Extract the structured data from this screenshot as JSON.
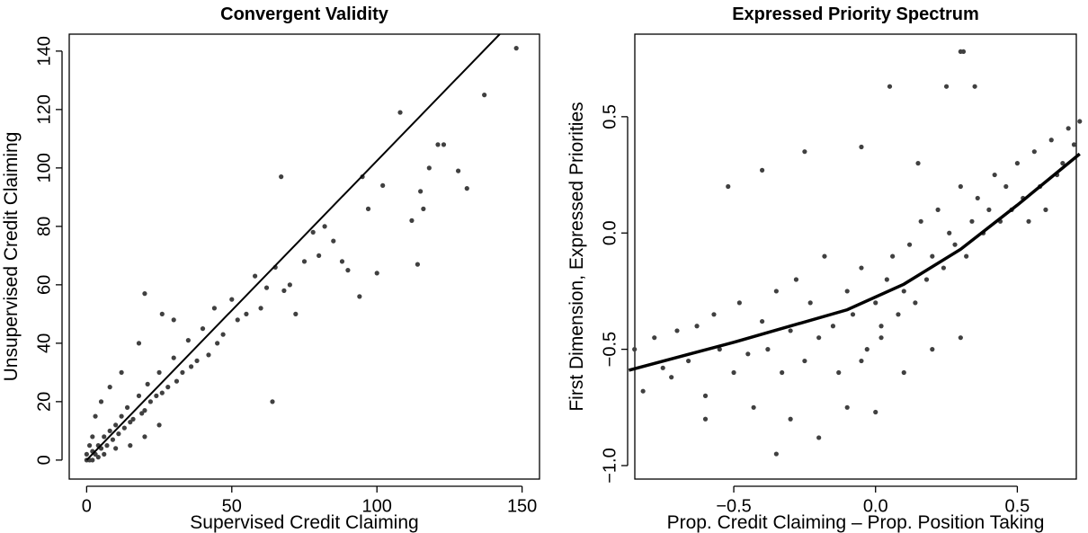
{
  "chart_data": [
    {
      "type": "scatter",
      "title": "Convergent Validity",
      "x_label": "Supervised Credit Claiming",
      "y_label": "Unsupervised Credit Claiming",
      "xlim": [
        -6,
        156
      ],
      "ylim": [
        -6.5,
        145.8
      ],
      "xticks": [
        0,
        50,
        100,
        150
      ],
      "yticks": [
        0,
        20,
        40,
        60,
        80,
        100,
        120,
        140
      ],
      "series": [
        {
          "kind": "points",
          "color": "#404040",
          "x": [
            1,
            2,
            3,
            4,
            5,
            6,
            7,
            8,
            9,
            10,
            11,
            12,
            13,
            14,
            15,
            16,
            18,
            19,
            20,
            21,
            22,
            24,
            25,
            26,
            28,
            30,
            31,
            33,
            35,
            36,
            38,
            40,
            42,
            44,
            45,
            47,
            50,
            52,
            55,
            58,
            60,
            62,
            64,
            65,
            67,
            68,
            70,
            72,
            75,
            78,
            80,
            82,
            85,
            88,
            90,
            94,
            95,
            97,
            100,
            102,
            108,
            112,
            114,
            115,
            116,
            118,
            121,
            123,
            128,
            131,
            137,
            148,
            3,
            5,
            8,
            12,
            18,
            20,
            26,
            30,
            15,
            20,
            25,
            2,
            4,
            6,
            10,
            1,
            0,
            0,
            2
          ],
          "y": [
            0,
            3,
            2,
            5,
            4,
            8,
            5,
            10,
            7,
            12,
            9,
            15,
            11,
            18,
            13,
            14,
            22,
            16,
            17,
            26,
            20,
            22,
            30,
            23,
            25,
            35,
            27,
            30,
            41,
            32,
            34,
            45,
            36,
            52,
            40,
            43,
            55,
            48,
            50,
            63,
            52,
            59,
            20,
            66,
            97,
            58,
            60,
            50,
            68,
            78,
            70,
            80,
            75,
            68,
            65,
            56,
            97,
            86,
            64,
            94,
            119,
            82,
            67,
            92,
            86,
            100,
            108,
            108,
            99,
            93,
            125,
            141,
            15,
            20,
            25,
            30,
            40,
            57,
            50,
            48,
            5,
            8,
            12,
            8,
            1,
            2,
            4,
            5,
            2,
            0,
            0
          ]
        },
        {
          "kind": "line",
          "color": "#000000",
          "x": [
            0,
            142.3
          ],
          "y": [
            0,
            145.8
          ]
        }
      ]
    },
    {
      "type": "scatter",
      "title": "Expressed Priority Spectrum",
      "x_label": "Prop. Credit Claiming – Prop. Position Taking",
      "y_label": "First Dimension, Expressed Priorities",
      "xlim": [
        -0.849,
        0.708
      ],
      "ylim": [
        -1.058,
        0.855
      ],
      "xticks": [
        {
          "value": -0.5,
          "label": "−0.5"
        },
        {
          "value": 0,
          "label": "0.0"
        },
        0.5
      ],
      "yticks": [
        {
          "value": -1,
          "label": "−1.0"
        },
        {
          "value": -0.5,
          "label": "−0.5"
        },
        {
          "value": 0,
          "label": "0.0"
        },
        0.5
      ],
      "series": [
        {
          "kind": "points",
          "color": "#404040",
          "x": [
            -0.85,
            -0.82,
            -0.78,
            -0.75,
            -0.72,
            -0.7,
            -0.66,
            -0.63,
            -0.6,
            -0.57,
            -0.55,
            -0.52,
            -0.5,
            -0.48,
            -0.45,
            -0.43,
            -0.4,
            -0.38,
            -0.35,
            -0.33,
            -0.3,
            -0.28,
            -0.25,
            -0.23,
            -0.2,
            -0.18,
            -0.15,
            -0.13,
            -0.1,
            -0.08,
            -0.05,
            -0.03,
            0,
            0.02,
            0.04,
            0.06,
            0.08,
            0.1,
            0.12,
            0.14,
            0.16,
            0.18,
            0.2,
            0.22,
            0.24,
            0.26,
            0.28,
            0.3,
            0.32,
            0.34,
            0.36,
            0.38,
            0.4,
            0.42,
            0.44,
            0.46,
            0.48,
            0.5,
            0.52,
            0.54,
            0.56,
            0.58,
            0.6,
            0.62,
            0.64,
            0.66,
            0.68,
            0.7,
            0.72,
            -0.3,
            -0.2,
            -0.1,
            0,
            0.1,
            0.2,
            0.3,
            -0.4,
            -0.25,
            -0.05,
            0.05,
            0.15,
            0.25,
            -0.6,
            -0.35,
            0.3,
            0.31,
            -0.05,
            0.02,
            0.35
          ],
          "y": [
            -0.5,
            -0.68,
            -0.45,
            -0.58,
            -0.62,
            -0.42,
            -0.55,
            -0.4,
            -0.7,
            -0.35,
            -0.5,
            0.2,
            -0.6,
            -0.3,
            -0.52,
            -0.75,
            -0.38,
            -0.5,
            -0.25,
            -0.6,
            -0.42,
            -0.2,
            -0.55,
            -0.3,
            -0.45,
            -0.1,
            -0.4,
            -0.6,
            -0.25,
            -0.35,
            -0.15,
            -0.5,
            -0.3,
            -0.45,
            -0.2,
            -0.1,
            -0.35,
            -0.25,
            -0.05,
            -0.3,
            0.05,
            -0.2,
            -0.1,
            0.1,
            -0.15,
            0,
            -0.05,
            0.2,
            -0.1,
            0.05,
            0.15,
            0,
            0.1,
            0.25,
            0.05,
            0.2,
            0.1,
            0.3,
            0.15,
            0.05,
            0.35,
            0.2,
            0.1,
            0.4,
            0.25,
            0.3,
            0.45,
            0.38,
            0.48,
            -0.8,
            -0.88,
            -0.75,
            -0.77,
            -0.6,
            -0.5,
            -0.45,
            0.27,
            0.35,
            0.37,
            0.63,
            0.3,
            0.63,
            -0.8,
            -0.95,
            0.78,
            0.78,
            -0.55,
            -0.4,
            0.63
          ]
        },
        {
          "kind": "line",
          "color": "#000000",
          "x": [
            -0.87,
            -0.5,
            -0.1,
            0.1,
            0.3,
            0.5,
            0.72
          ],
          "y": [
            -0.59,
            -0.47,
            -0.33,
            -0.22,
            -0.07,
            0.12,
            0.34
          ]
        }
      ]
    }
  ]
}
